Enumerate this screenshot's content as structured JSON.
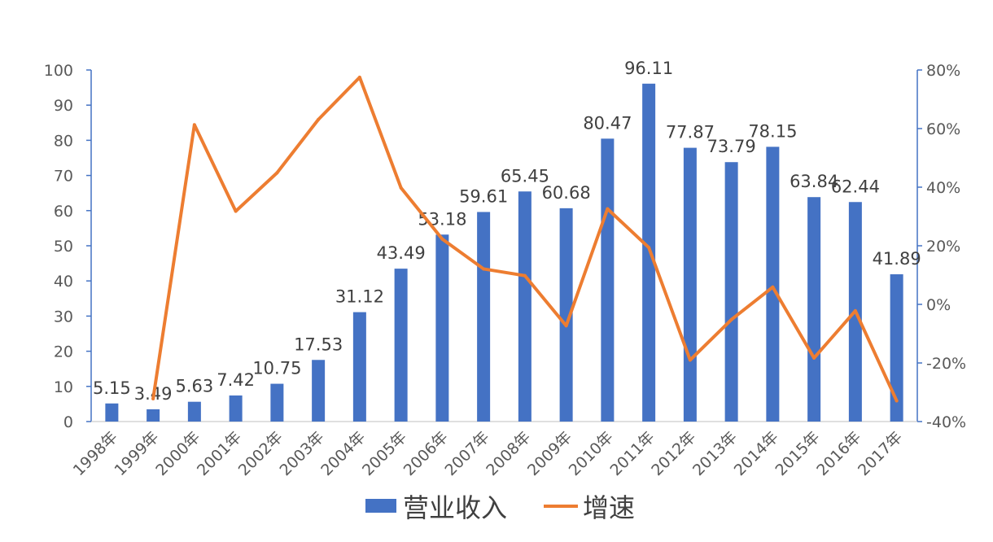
{
  "chart_data": {
    "type": "bar",
    "categories": [
      "1998年",
      "1999年",
      "2000年",
      "2001年",
      "2002年",
      "2003年",
      "2004年",
      "2005年",
      "2006年",
      "2007年",
      "2008年",
      "2009年",
      "2010年",
      "2011年",
      "2012年",
      "2013年",
      "2014年",
      "2015年",
      "2016年",
      "2017年"
    ],
    "series": [
      {
        "name": "营业收入",
        "type": "bar",
        "axis": "left",
        "color": "#4472C4",
        "values": [
          5.15,
          3.49,
          5.63,
          7.42,
          10.75,
          17.53,
          31.12,
          43.49,
          53.18,
          59.61,
          65.45,
          60.68,
          80.47,
          96.11,
          77.87,
          73.79,
          78.15,
          63.84,
          62.44,
          41.89
        ],
        "labels": [
          "5.15",
          "3.49",
          "5.63",
          "7.42",
          "10.75",
          "17.53",
          "31.12",
          "43.49",
          "53.18",
          "59.61",
          "65.45",
          "60.68",
          "80.47",
          "96.11",
          "77.87",
          "73.79",
          "78.15",
          "63.84",
          "62.44",
          "41.89"
        ]
      },
      {
        "name": "增速",
        "type": "line",
        "axis": "right",
        "color": "#ED7D31",
        "values": [
          null,
          -32.2,
          61.3,
          31.8,
          44.9,
          63.1,
          77.5,
          39.8,
          22.3,
          12.1,
          9.8,
          -7.3,
          32.6,
          19.4,
          -19.0,
          -5.2,
          5.9,
          -18.3,
          -2.2,
          -32.9
        ]
      }
    ],
    "yaxis_left": {
      "min": 0,
      "max": 100,
      "ticks": [
        "0",
        "10",
        "20",
        "30",
        "40",
        "50",
        "60",
        "70",
        "80",
        "90",
        "100"
      ]
    },
    "yaxis_right": {
      "min": -40,
      "max": 80,
      "ticks": [
        "-40%",
        "-20%",
        "0%",
        "20%",
        "40%",
        "60%",
        "80%"
      ]
    },
    "legend": {
      "position": "bottom",
      "items": [
        "营业收入",
        "增速"
      ]
    },
    "grid": false
  }
}
